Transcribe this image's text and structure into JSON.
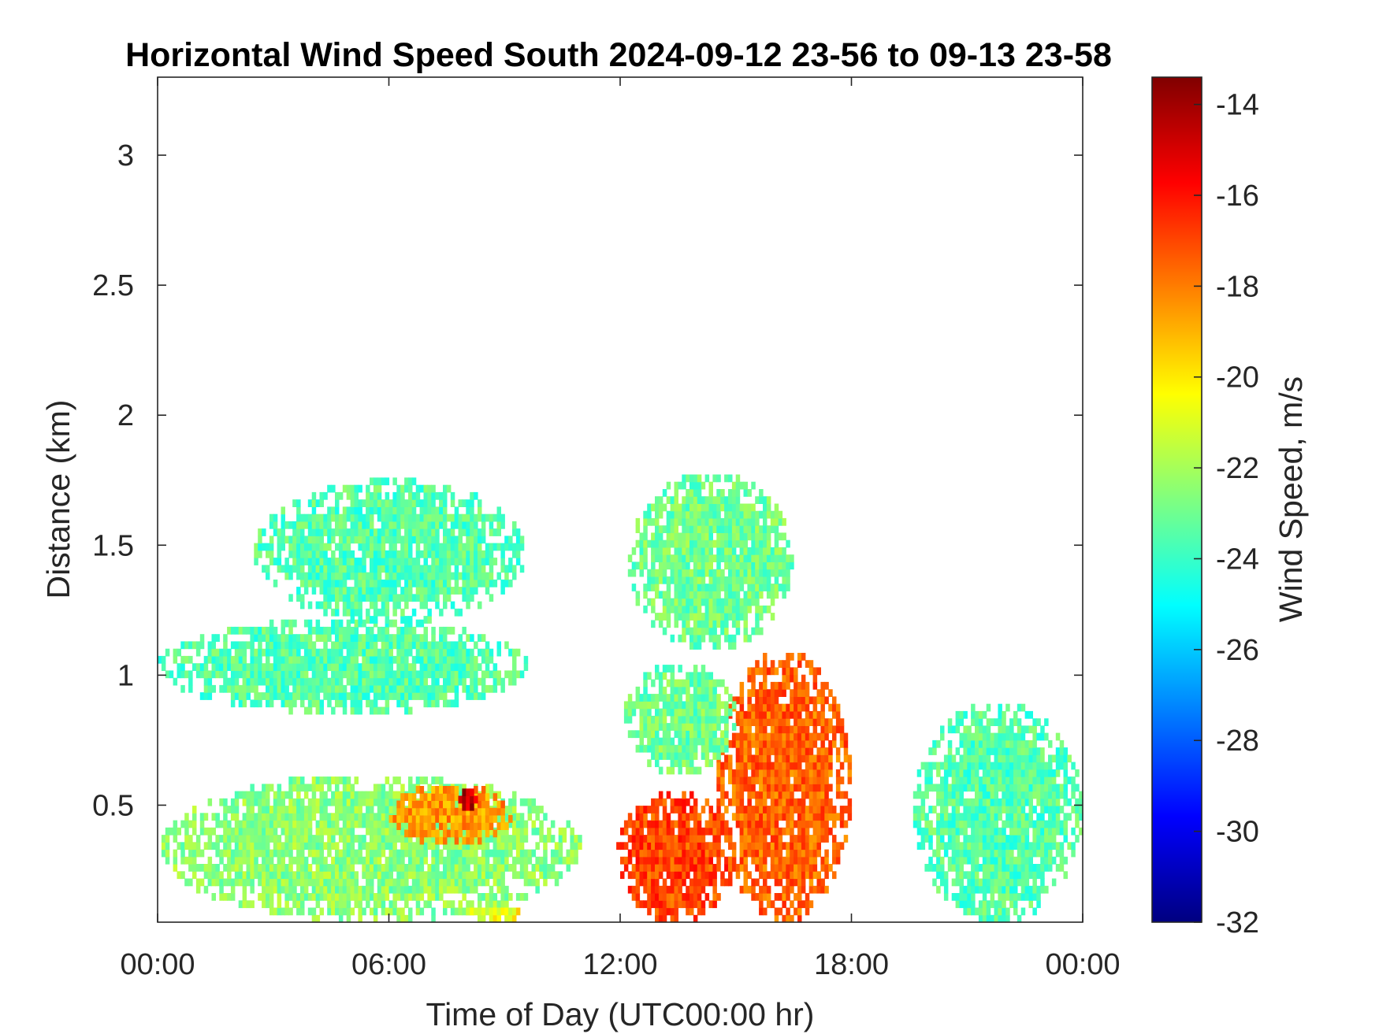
{
  "chart_data": {
    "type": "heatmap",
    "title": "Horizontal Wind Speed South 2024-09-12 23-56 to 09-13 23-58",
    "xlabel": "Time of Day (UTC00:00 hr)",
    "ylabel": "Distance (km)",
    "xlim": [
      0,
      24
    ],
    "ylim": [
      0.05,
      3.3
    ],
    "xtick_values": [
      0,
      6,
      12,
      18,
      24
    ],
    "xtick_labels": [
      "00:00",
      "06:00",
      "12:00",
      "18:00",
      "00:00"
    ],
    "ytick_values": [
      0.5,
      1,
      1.5,
      2,
      2.5,
      3
    ],
    "ytick_labels": [
      "0.5",
      "1",
      "1.5",
      "2",
      "2.5",
      "3"
    ],
    "grid": false,
    "colormap": "jet",
    "colorbar": {
      "label": "Wind Speed, m/s",
      "range": [
        -32,
        -13.4
      ],
      "tick_values": [
        -14,
        -16,
        -18,
        -20,
        -22,
        -24,
        -26,
        -28,
        -30,
        -32
      ],
      "tick_labels": [
        "-14",
        "-16",
        "-18",
        "-20",
        "-22",
        "-24",
        "-26",
        "-28",
        "-30",
        "-32"
      ]
    },
    "regions": [
      {
        "name": "low-morning",
        "t": [
          0.1,
          11.0
        ],
        "z": [
          0.05,
          0.62
        ],
        "value": -22.5
      },
      {
        "name": "morning-core",
        "t": [
          6.0,
          9.2
        ],
        "z": [
          0.35,
          0.58
        ],
        "value": -18.5
      },
      {
        "name": "morning-max",
        "t": [
          7.8,
          8.3
        ],
        "z": [
          0.48,
          0.58
        ],
        "value": -14.5
      },
      {
        "name": "morning-surface-warm",
        "t": [
          8.0,
          9.5
        ],
        "z": [
          0.05,
          0.12
        ],
        "value": -20.5
      },
      {
        "name": "mid-layer-morning",
        "t": [
          0.0,
          9.6
        ],
        "z": [
          0.85,
          1.22
        ],
        "value": -23.5
      },
      {
        "name": "upper-layer-morning",
        "t": [
          2.5,
          9.6
        ],
        "z": [
          1.2,
          1.75
        ],
        "value": -23.5
      },
      {
        "name": "afternoon-low",
        "t": [
          11.9,
          15.0
        ],
        "z": [
          0.05,
          0.55
        ],
        "value": -17.0
      },
      {
        "name": "afternoon-rising",
        "t": [
          14.5,
          18.0
        ],
        "z": [
          0.05,
          1.1
        ],
        "value": -17.5
      },
      {
        "name": "afternoon-mid",
        "t": [
          12.1,
          15.0
        ],
        "z": [
          0.62,
          1.05
        ],
        "value": -23.0
      },
      {
        "name": "afternoon-upper",
        "t": [
          12.2,
          16.5
        ],
        "z": [
          1.1,
          1.78
        ],
        "value": -23.0
      },
      {
        "name": "evening-low",
        "t": [
          19.6,
          24.0
        ],
        "z": [
          0.05,
          0.9
        ],
        "value": -23.5
      }
    ]
  }
}
